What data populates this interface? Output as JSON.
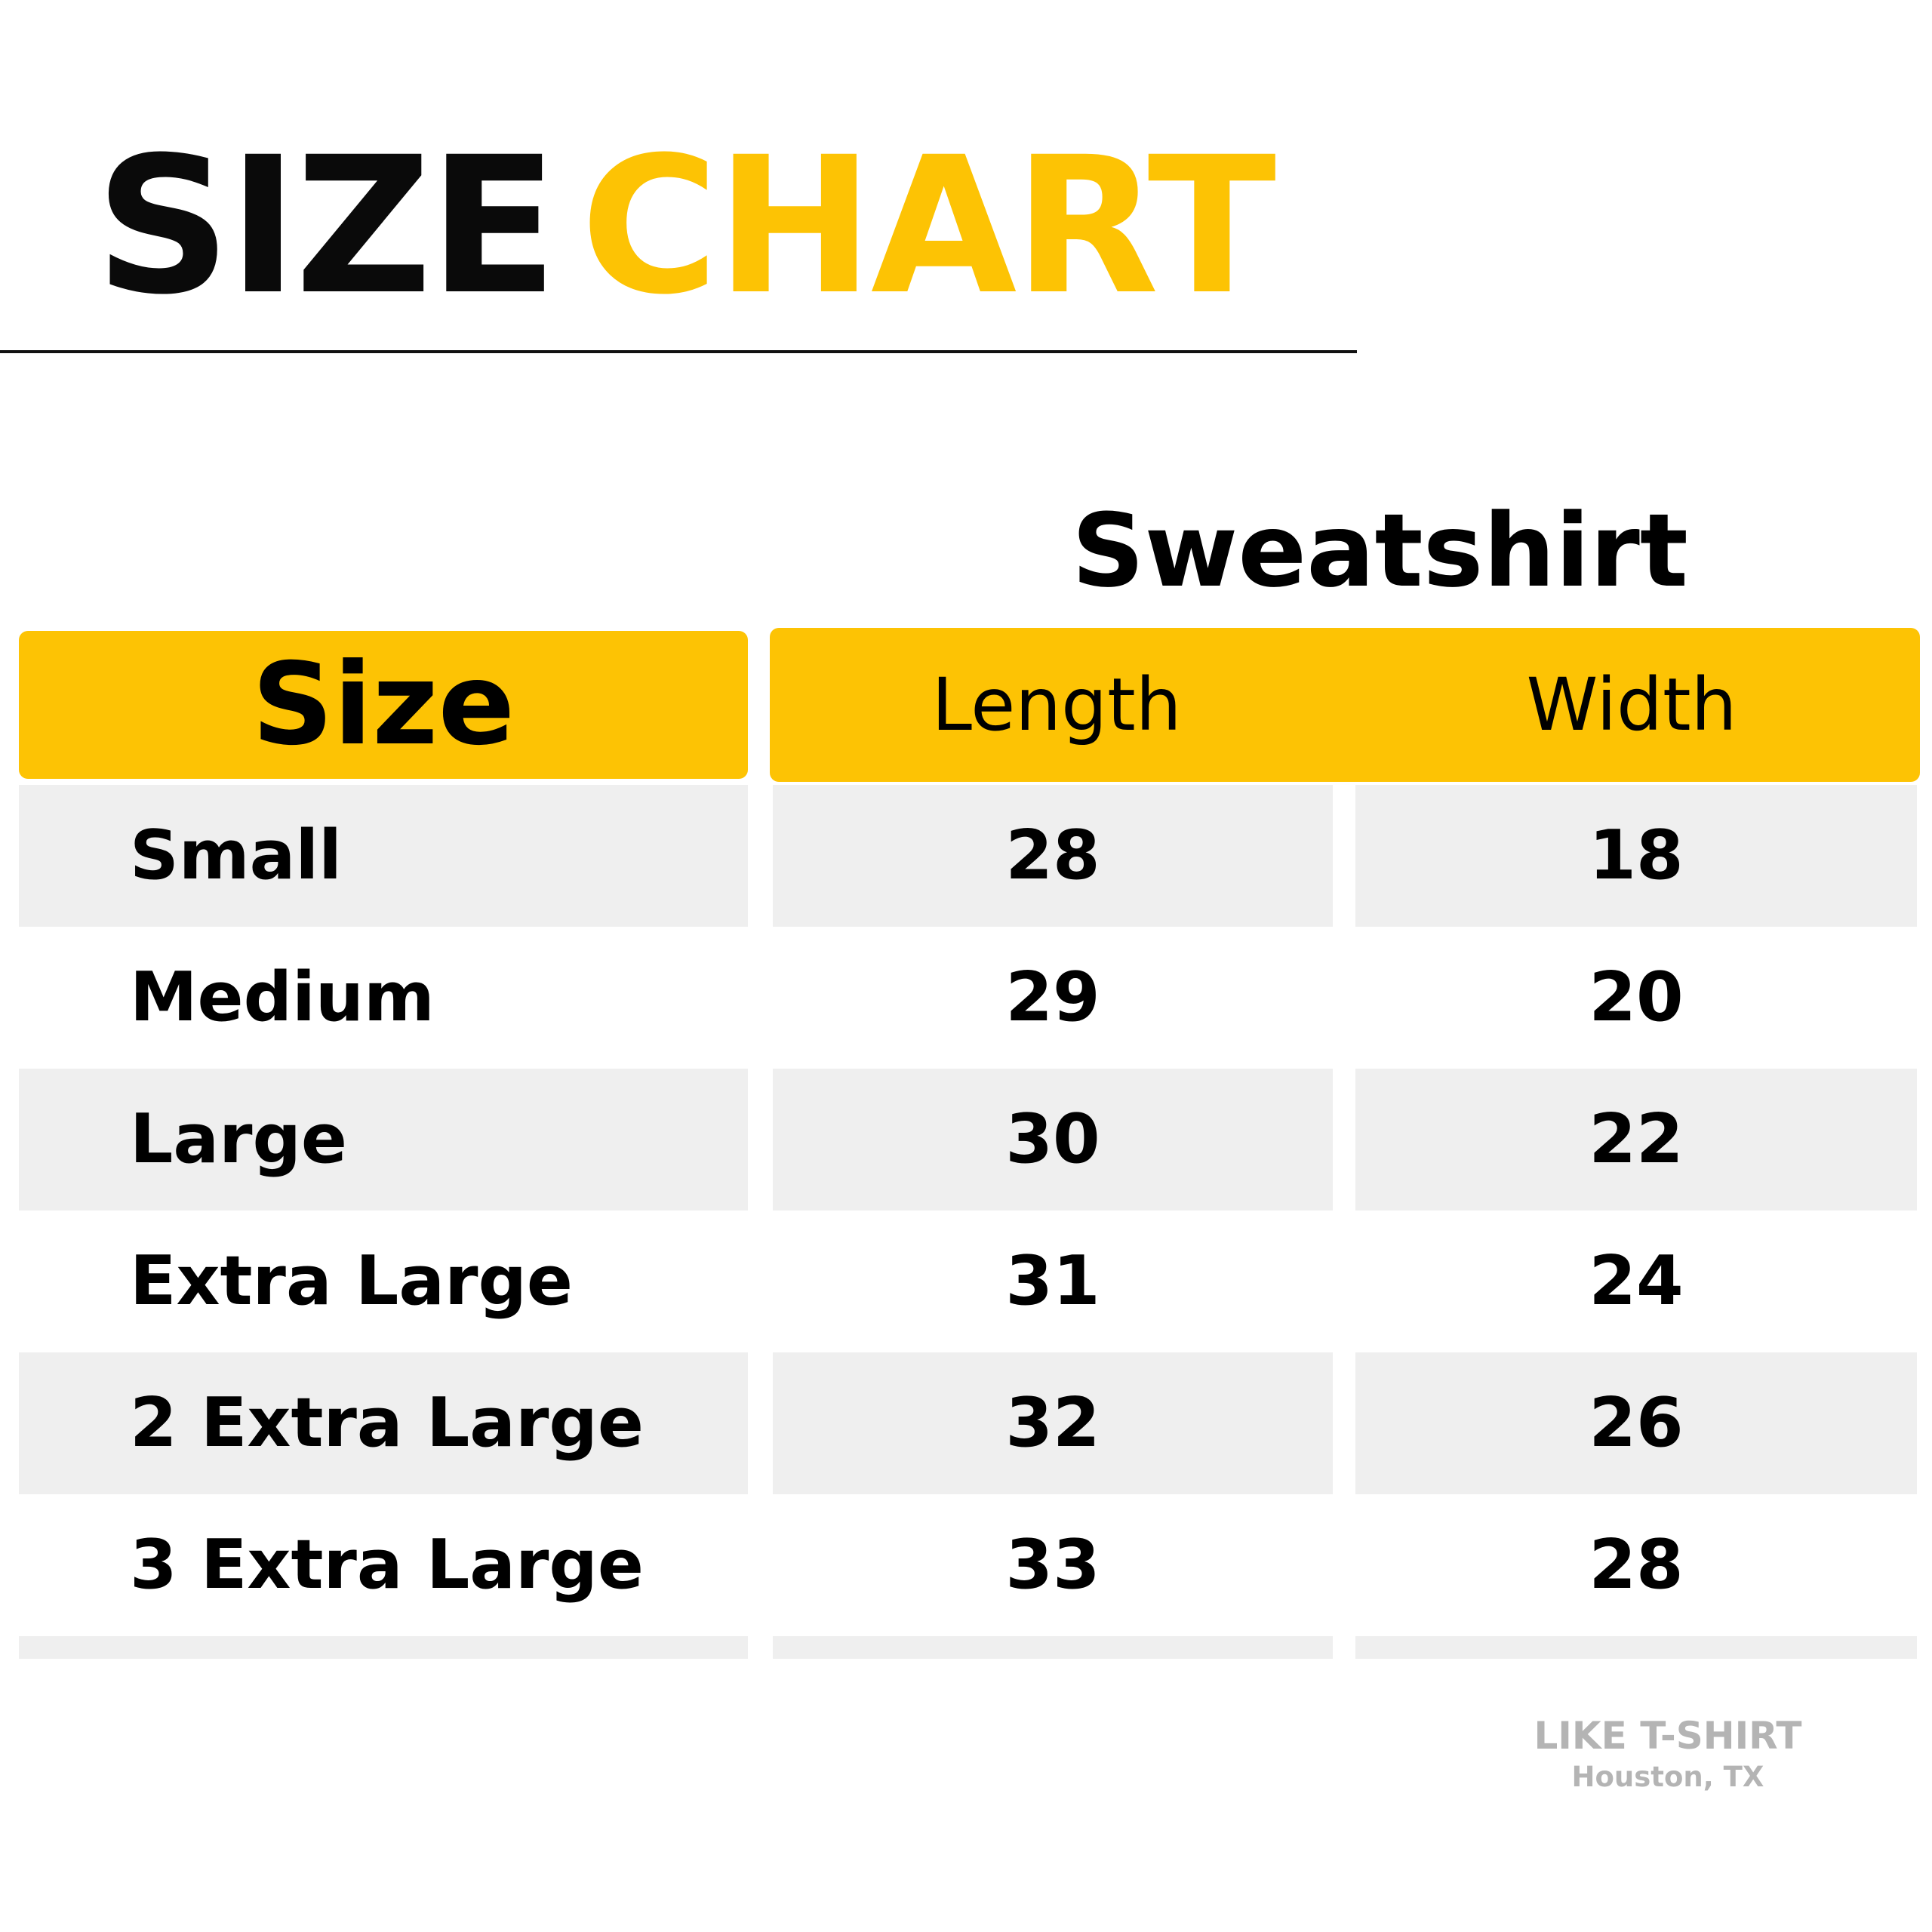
{
  "title": {
    "word1": "SIZE",
    "word2": "CHART"
  },
  "product": "Sweatshirt",
  "table": {
    "headers": {
      "size": "Size",
      "length": "Length",
      "width": "Width"
    },
    "rows": [
      {
        "size": "Small",
        "length": "28",
        "width": "18"
      },
      {
        "size": "Medium",
        "length": "29",
        "width": "20"
      },
      {
        "size": "Large",
        "length": "30",
        "width": "22"
      },
      {
        "size": "Extra Large",
        "length": "31",
        "width": "24"
      },
      {
        "size": "2 Extra Large",
        "length": "32",
        "width": "26"
      },
      {
        "size": "3 Extra Large",
        "length": "33",
        "width": "28"
      }
    ]
  },
  "footer": {
    "brand": "LIKE T-SHIRT",
    "location": "Houston, TX"
  },
  "colors": {
    "accent": "#FDC304",
    "stripe": "#EFEFEF",
    "text": "#000000",
    "muted": "#B4B4B4"
  }
}
